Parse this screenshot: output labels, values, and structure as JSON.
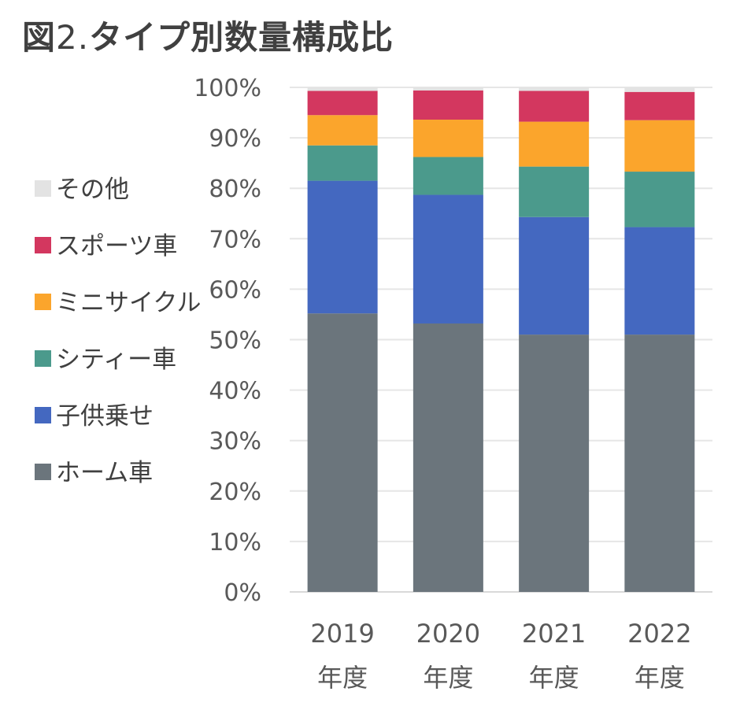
{
  "title": {
    "prefix": "図",
    "number": "2.",
    "text": "タイプ別数量構成比"
  },
  "chart_data": {
    "type": "bar",
    "stacked": true,
    "categories": [
      [
        "2019",
        "年度"
      ],
      [
        "2020",
        "年度"
      ],
      [
        "2021",
        "年度"
      ],
      [
        "2022",
        "年度"
      ]
    ],
    "ylim": [
      0,
      100
    ],
    "yticks": [
      "0%",
      "10%",
      "20%",
      "30%",
      "40%",
      "50%",
      "60%",
      "70%",
      "80%",
      "90%",
      "100%"
    ],
    "grid": true,
    "legend_position": "left",
    "series": [
      {
        "name": "ホーム車",
        "color": "#6b757c",
        "values": [
          55.2,
          53.2,
          51.0,
          51.0
        ]
      },
      {
        "name": "子供乗せ",
        "color": "#4468c0",
        "values": [
          26.3,
          25.5,
          23.3,
          21.3
        ]
      },
      {
        "name": "シティー車",
        "color": "#4b9a8c",
        "values": [
          7.0,
          7.5,
          10.0,
          11.0
        ]
      },
      {
        "name": "ミニサイクル",
        "color": "#fba52c",
        "values": [
          6.0,
          7.4,
          8.9,
          10.2
        ]
      },
      {
        "name": "スポーツ車",
        "color": "#d3375f",
        "values": [
          4.8,
          5.8,
          6.1,
          5.6
        ]
      },
      {
        "name": "その他",
        "color": "#e3e3e3",
        "values": [
          0.7,
          0.6,
          0.7,
          0.9
        ]
      }
    ]
  }
}
